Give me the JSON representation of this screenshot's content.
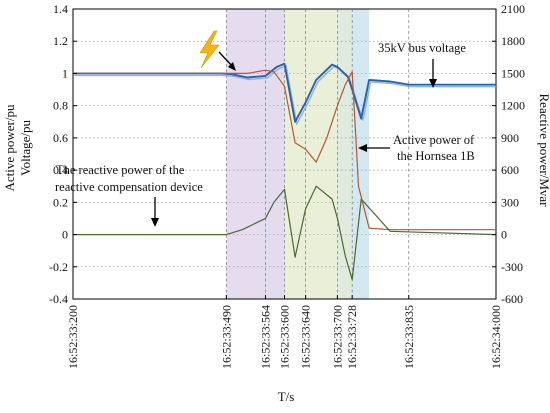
{
  "chart_data": {
    "type": "line",
    "xlabel": "T/s",
    "ylabel_left": [
      "Active power/pu",
      "Voltage/pu"
    ],
    "ylabel_right": "Reactive power/Mvar",
    "x_ticks": [
      "16:52:33:200",
      "16:52:33:490",
      "16:52:33:564",
      "16:52:33:600",
      "16:52:33:640",
      "16:52:33:700",
      "16:52:33:728",
      "16:52:33:835",
      "16:52:34:000"
    ],
    "x_tick_seconds": [
      33.2,
      33.49,
      33.564,
      33.6,
      33.64,
      33.7,
      33.728,
      33.835,
      34.0
    ],
    "xlim": [
      33.2,
      34.0
    ],
    "ylim_left": [
      -0.4,
      1.4
    ],
    "ylim_right": [
      -600,
      2100
    ],
    "left_ticks": [
      "-0.4",
      "-0.2",
      "0",
      "0.2",
      "0.4",
      "0.6",
      "0.8",
      "1",
      "1.2",
      "1.4"
    ],
    "right_ticks": [
      "-600",
      "-300",
      "0",
      "300",
      "600",
      "900",
      "1200",
      "1500",
      "1800",
      "2100"
    ],
    "grid": "dotted horizontal",
    "shaded_bands": [
      {
        "x0": 33.49,
        "x1": 33.564,
        "color": "#e3d5ec"
      },
      {
        "x0": 33.564,
        "x1": 33.6,
        "color": "#ddd6ea"
      },
      {
        "x0": 33.6,
        "x1": 33.7,
        "color": "#e6ecd1"
      },
      {
        "x0": 33.7,
        "x1": 33.728,
        "color": "#dbe6d8"
      },
      {
        "x0": 33.728,
        "x1": 33.76,
        "color": "#cde4ef"
      }
    ],
    "series": [
      {
        "name": "35kV bus voltage",
        "axis": "left",
        "color": "#2f5fa8",
        "x": [
          33.2,
          33.48,
          33.5,
          33.53,
          33.564,
          33.585,
          33.6,
          33.62,
          33.64,
          33.66,
          33.69,
          33.7,
          33.72,
          33.728,
          33.745,
          33.76,
          33.8,
          33.835,
          34.0
        ],
        "y": [
          1.0,
          1.0,
          0.995,
          0.975,
          0.985,
          1.04,
          1.06,
          0.7,
          0.82,
          0.96,
          1.055,
          1.04,
          0.98,
          0.9,
          0.72,
          0.96,
          0.95,
          0.93,
          0.93
        ]
      },
      {
        "name": "Active power of the Hornsea 1B",
        "axis": "left",
        "color": "#b35a33",
        "x": [
          33.2,
          33.49,
          33.53,
          33.564,
          33.58,
          33.6,
          33.62,
          33.64,
          33.66,
          33.68,
          33.7,
          33.715,
          33.728,
          33.74,
          33.76,
          33.8,
          34.0
        ],
        "y": [
          1.0,
          1.0,
          1.0,
          1.02,
          1.01,
          0.92,
          0.57,
          0.53,
          0.45,
          0.6,
          0.8,
          0.93,
          1.01,
          0.3,
          0.04,
          0.03,
          0.03
        ]
      },
      {
        "name": "The reactive power of the reactive compensation device",
        "axis": "right",
        "color": "#4a6b30",
        "x": [
          33.2,
          33.49,
          33.52,
          33.564,
          33.58,
          33.6,
          33.62,
          33.64,
          33.66,
          33.69,
          33.7,
          33.715,
          33.728,
          33.745,
          33.8,
          34.0
        ],
        "y": [
          0,
          0,
          45,
          150,
          300,
          420,
          -210,
          240,
          450,
          330,
          150,
          -200,
          -420,
          330,
          30,
          0
        ]
      }
    ],
    "annotations": [
      {
        "text": "35kV bus voltage"
      },
      {
        "text": "Active power of",
        "text2": "the Hornsea 1B"
      },
      {
        "text": "The reactive power of the",
        "text2": "reactive compensation device"
      }
    ]
  }
}
